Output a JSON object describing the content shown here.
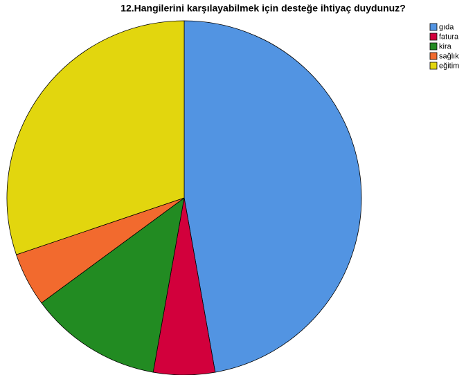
{
  "chart_data": {
    "type": "pie",
    "title": "12.Hangilerini karşılayabilmek için desteğe ihtiyaç duydunuz?",
    "categories": [
      "gıda",
      "fatura",
      "kira",
      "sağlık",
      "eğitim"
    ],
    "values": [
      47.2,
      5.6,
      12.1,
      4.9,
      30.2
    ],
    "colors": [
      "#5294e2",
      "#d2003c",
      "#228b22",
      "#f26a2e",
      "#e2d60e"
    ]
  }
}
